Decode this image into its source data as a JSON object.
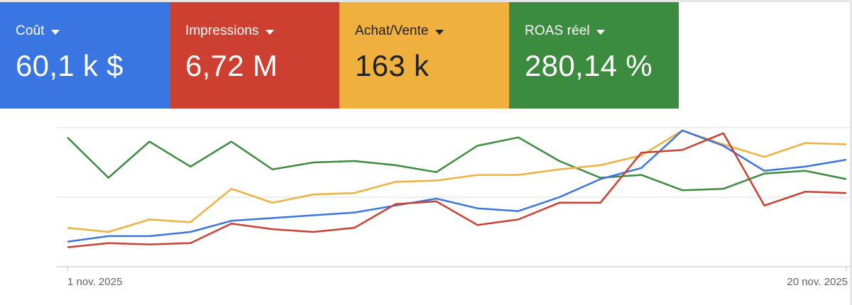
{
  "metrics": [
    {
      "label": "Coût",
      "value": "60,1 k $",
      "color": "#3a76e1",
      "text_color": "#ffffff"
    },
    {
      "label": "Impressions",
      "value": "6,72 M",
      "color": "#cd3f31",
      "text_color": "#ffffff"
    },
    {
      "label": "Achat/Vente",
      "value": "163 k",
      "color": "#efb03d",
      "text_color": "#202124"
    },
    {
      "label": "ROAS réel",
      "value": "280,14 %",
      "color": "#3b8c3e",
      "text_color": "#ffffff"
    }
  ],
  "chart_data": {
    "type": "line",
    "title": "",
    "x": [
      "1 nov.",
      "2 nov.",
      "3 nov.",
      "4 nov.",
      "5 nov.",
      "6 nov.",
      "7 nov.",
      "8 nov.",
      "9 nov.",
      "10 nov.",
      "11 nov.",
      "12 nov.",
      "13 nov.",
      "14 nov.",
      "15 nov.",
      "16 nov.",
      "17 nov.",
      "18 nov.",
      "19 nov.",
      "20 nov."
    ],
    "x_tick_labels": [
      "1 nov. 2025",
      "20 nov. 2025"
    ],
    "ylim": [
      0,
      100
    ],
    "y_unit": "relative (normalized per series)",
    "grid": true,
    "series": [
      {
        "name": "Coût",
        "color": "#3a76e1",
        "values": [
          18,
          22,
          22,
          25,
          33,
          35,
          37,
          39,
          44,
          49,
          42,
          40,
          50,
          63,
          71,
          98,
          87,
          69,
          72,
          77
        ]
      },
      {
        "name": "Impressions",
        "color": "#cd3f31",
        "values": [
          14,
          17,
          16,
          17,
          31,
          27,
          25,
          28,
          45,
          47,
          30,
          34,
          46,
          46,
          82,
          84,
          96,
          44,
          54,
          53
        ]
      },
      {
        "name": "Achat/Vente",
        "color": "#efb03d",
        "values": [
          28,
          25,
          34,
          32,
          56,
          46,
          52,
          53,
          61,
          62,
          66,
          66,
          70,
          73,
          80,
          98,
          88,
          79,
          89,
          88
        ]
      },
      {
        "name": "ROAS réel",
        "color": "#3b8c3e",
        "values": [
          93,
          64,
          90,
          72,
          90,
          70,
          75,
          76,
          73,
          68,
          87,
          93,
          76,
          64,
          66,
          55,
          56,
          67,
          69,
          63
        ]
      }
    ]
  }
}
